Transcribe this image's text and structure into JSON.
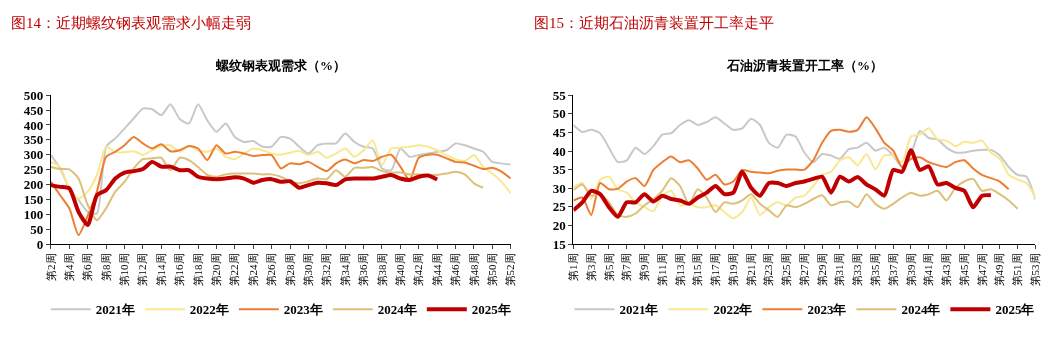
{
  "chart_data": [
    {
      "type": "line",
      "title": "图14：近期螺纹钢表观需求小幅走弱",
      "subtitle": "螺纹钢表观需求（%）",
      "categories": [
        "第2周",
        null,
        "第4周",
        null,
        "第6周",
        null,
        "第8周",
        null,
        "第10周",
        null,
        "第12周",
        null,
        "第14周",
        null,
        "第16周",
        null,
        "第18周",
        null,
        "第20周",
        null,
        "第22周",
        null,
        "第24周",
        null,
        "第26周",
        null,
        "第28周",
        null,
        "第30周",
        null,
        "第32周",
        null,
        "第34周",
        null,
        "第36周",
        null,
        "第38周",
        null,
        "第40周",
        null,
        "第42周",
        null,
        "第44周",
        null,
        "第46周",
        null,
        "第48周",
        null,
        "第50周",
        null,
        "第52周"
      ],
      "series": [
        {
          "name": "2021年",
          "color": "#c8c8c8",
          "values": [
            299,
            254,
            187,
            148,
            108,
            103,
            327,
            355,
            388,
            422,
            455,
            453,
            433,
            470,
            420,
            405,
            470,
            416,
            377,
            405,
            360,
            343,
            346,
            327,
            327,
            360,
            354,
            327,
            304,
            332,
            338,
            338,
            371,
            343,
            327,
            321,
            254,
            248,
            321,
            293,
            299,
            304,
            310,
            315,
            338,
            332,
            321,
            310,
            276,
            271,
            267
          ]
        },
        {
          "name": "2022年",
          "color": "#f8e891",
          "values": [
            276,
            259,
            187,
            153,
            176,
            232,
            327,
            310,
            308,
            312,
            299,
            315,
            329,
            332,
            310,
            329,
            315,
            310,
            321,
            293,
            285,
            304,
            321,
            315,
            304,
            300,
            307,
            313,
            299,
            310,
            290,
            304,
            321,
            293,
            315,
            349,
            265,
            321,
            324,
            327,
            332,
            327,
            315,
            299,
            285,
            279,
            299,
            259,
            237,
            209,
            170
          ]
        },
        {
          "name": "2023年",
          "color": "#ed7d31",
          "values": [
            209,
            164,
            120,
            30,
            95,
            176,
            293,
            310,
            332,
            360,
            338,
            321,
            335,
            312,
            315,
            329,
            321,
            282,
            332,
            304,
            310,
            304,
            296,
            299,
            299,
            254,
            271,
            268,
            276,
            259,
            245,
            271,
            284,
            271,
            282,
            279,
            293,
            300,
            260,
            215,
            290,
            300,
            300,
            288,
            276,
            274,
            263,
            252,
            256,
            243,
            220
          ]
        },
        {
          "name": "2024年",
          "color": "#dcc07a",
          "values": [
            259,
            252,
            251,
            220,
            131,
            80,
            120,
            176,
            209,
            254,
            285,
            288,
            290,
            248,
            290,
            282,
            259,
            232,
            226,
            234,
            237,
            237,
            237,
            234,
            234,
            226,
            211,
            204,
            211,
            220,
            218,
            248,
            226,
            256,
            256,
            259,
            245,
            240,
            240,
            234,
            234,
            232,
            232,
            237,
            243,
            234,
            204,
            189,
            null,
            null,
            null
          ]
        },
        {
          "name": "2025年",
          "color": "#c00000",
          "values": [
            198,
            192,
            187,
            108,
            64,
            164,
            181,
            220,
            240,
            245,
            252,
            276,
            260,
            260,
            248,
            248,
            226,
            220,
            218,
            220,
            224,
            220,
            206,
            215,
            218,
            209,
            211,
            189,
            198,
            206,
            204,
            198,
            217,
            220,
            220,
            220,
            226,
            232,
            220,
            215,
            226,
            230,
            217,
            null,
            null,
            null,
            null,
            null,
            null,
            null,
            null
          ]
        }
      ],
      "ylim": [
        0,
        500
      ],
      "yticks": [
        0,
        50,
        100,
        150,
        200,
        250,
        300,
        350,
        400,
        450,
        500
      ],
      "legend": "bottom"
    },
    {
      "type": "line",
      "title": "图15：近期石油沥青装置开工率走平",
      "subtitle": "石油沥青装置开工率（%）",
      "categories": [
        "第1周",
        null,
        "第3周",
        null,
        "第5周",
        null,
        "第7周",
        null,
        "第9周",
        null,
        "第11周",
        null,
        "第13周",
        null,
        "第15周",
        null,
        "第17周",
        null,
        "第19周",
        null,
        "第21周",
        null,
        "第23周",
        null,
        "第25周",
        null,
        "第27周",
        null,
        "第29周",
        null,
        "第31周",
        null,
        "第33周",
        null,
        "第35周",
        null,
        "第37周",
        null,
        "第39周",
        null,
        "第41周",
        null,
        "第43周",
        null,
        "第45周",
        null,
        "第47周",
        null,
        "第49周",
        null,
        "第51周",
        null,
        "第53周"
      ],
      "series": [
        {
          "name": "2021年",
          "color": "#c8c8c8",
          "values": [
            47.0,
            45.1,
            45.7,
            44.8,
            40.9,
            37.0,
            37.5,
            40.9,
            39.2,
            41.3,
            44.4,
            44.8,
            47.0,
            48.3,
            47.0,
            47.8,
            49.1,
            47.4,
            45.7,
            46.1,
            48.7,
            47.0,
            42.2,
            40.9,
            44.4,
            43.9,
            39.6,
            37.0,
            39.2,
            38.8,
            37.9,
            40.5,
            40.9,
            42.2,
            40.1,
            40.9,
            38.8,
            35.7,
            39.2,
            45.4,
            43.5,
            43.1,
            40.9,
            39.6,
            39.6,
            40.1,
            40.3,
            40.3,
            38.8,
            35.7,
            33.6,
            33.1,
            27.0
          ]
        },
        {
          "name": "2022年",
          "color": "#f8e891",
          "values": [
            30.3,
            31.4,
            27.1,
            32.3,
            33.1,
            29.7,
            28.8,
            26.2,
            24.9,
            23.8,
            28.0,
            29.3,
            25.4,
            25.8,
            24.9,
            24.9,
            25.4,
            23.6,
            21.9,
            23.6,
            27.5,
            22.8,
            24.9,
            26.2,
            25.4,
            27.5,
            28.0,
            30.6,
            33.6,
            34.4,
            37.5,
            38.3,
            36.2,
            39.2,
            35.1,
            38.8,
            38.8,
            37.0,
            43.9,
            44.4,
            46.1,
            43.1,
            42.8,
            41.3,
            42.5,
            42.2,
            42.8,
            39.6,
            37.9,
            33.6,
            32.3,
            31.4,
            27.5
          ]
        },
        {
          "name": "2023年",
          "color": "#ed7d31",
          "values": [
            26.7,
            27.5,
            22.8,
            31.4,
            29.7,
            29.9,
            31.8,
            32.7,
            30.6,
            34.9,
            37.0,
            38.5,
            37.0,
            37.5,
            35.3,
            32.3,
            33.6,
            31.0,
            31.8,
            34.9,
            34.4,
            34.2,
            34.0,
            34.7,
            35.0,
            35.0,
            35.0,
            37.5,
            42.2,
            45.4,
            45.7,
            45.2,
            45.7,
            49.1,
            46.1,
            42.2,
            40.1,
            35.7,
            37.9,
            38.3,
            37.0,
            36.2,
            35.7,
            37.0,
            37.5,
            35.3,
            33.6,
            32.7,
            31.8,
            29.7,
            null,
            null,
            null
          ]
        },
        {
          "name": "2024年",
          "color": "#dcc07a",
          "values": [
            29.5,
            31.0,
            28.0,
            28.4,
            26.2,
            22.8,
            22.3,
            23.2,
            25.4,
            27.1,
            29.3,
            32.7,
            30.6,
            25.8,
            29.7,
            27.5,
            23.6,
            26.2,
            25.8,
            26.7,
            28.4,
            25.8,
            24.1,
            22.3,
            25.4,
            24.9,
            25.8,
            27.1,
            28.1,
            25.4,
            26.2,
            26.4,
            24.9,
            28.4,
            25.8,
            24.5,
            25.8,
            27.5,
            28.8,
            28.0,
            28.4,
            29.3,
            26.7,
            30.1,
            31.8,
            32.5,
            29.3,
            29.7,
            28.4,
            26.7,
            24.5,
            null,
            null
          ]
        },
        {
          "name": "2025年",
          "color": "#c00000",
          "values": [
            24.1,
            26.2,
            29.3,
            28.4,
            24.9,
            22.3,
            26.2,
            26.2,
            28.4,
            26.4,
            28.0,
            27.1,
            26.7,
            25.8,
            27.5,
            28.8,
            30.6,
            28.4,
            28.8,
            34.4,
            30.1,
            28.0,
            31.4,
            31.4,
            30.6,
            31.4,
            31.8,
            32.5,
            33.1,
            28.8,
            33.1,
            31.8,
            33.0,
            31.0,
            29.7,
            28.0,
            34.9,
            34.4,
            40.2,
            34.9,
            35.9,
            31.0,
            31.4,
            30.1,
            29.3,
            24.9,
            28.0,
            28.1,
            null,
            null,
            null,
            null,
            null
          ]
        }
      ],
      "ylim": [
        15,
        55
      ],
      "yticks": [
        15,
        20,
        25,
        30,
        35,
        40,
        45,
        50,
        55
      ],
      "legend": "bottom"
    }
  ]
}
